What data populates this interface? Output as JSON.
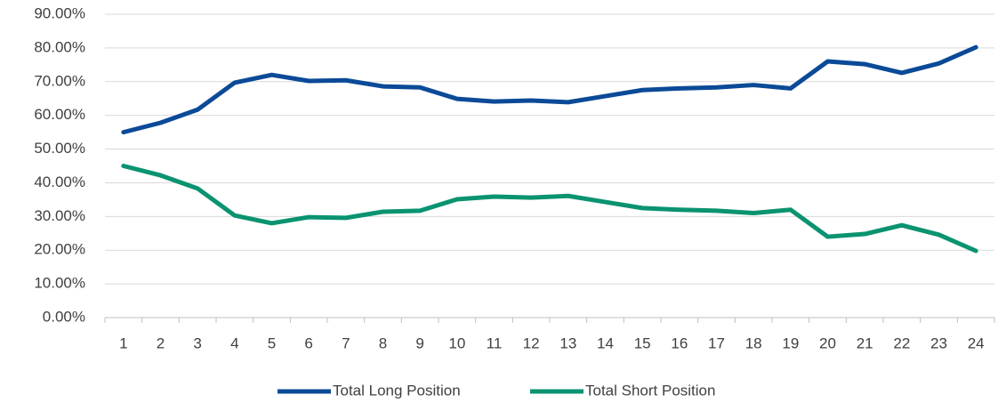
{
  "chart_data": {
    "type": "line",
    "categories": [
      "1",
      "2",
      "3",
      "4",
      "5",
      "6",
      "7",
      "8",
      "9",
      "10",
      "11",
      "12",
      "13",
      "14",
      "15",
      "16",
      "17",
      "18",
      "19",
      "20",
      "21",
      "22",
      "23",
      "24"
    ],
    "series": [
      {
        "name": "Total Long Position",
        "color": "#0b4a97",
        "values": [
          55,
          57.8,
          61.7,
          69.7,
          72,
          70.2,
          70.4,
          68.6,
          68.3,
          64.9,
          64.1,
          64.4,
          63.9,
          65.7,
          67.5,
          68,
          68.3,
          69,
          68,
          76,
          75.2,
          72.6,
          75.4,
          80.2
        ]
      },
      {
        "name": "Total Short Position",
        "color": "#0a9370",
        "values": [
          45,
          42.2,
          38.3,
          30.3,
          28,
          29.8,
          29.6,
          31.4,
          31.7,
          35.1,
          35.9,
          35.6,
          36.1,
          34.3,
          32.5,
          32,
          31.7,
          31,
          32,
          24,
          24.8,
          27.4,
          24.6,
          19.8
        ]
      }
    ],
    "ylim": [
      0,
      90
    ],
    "yticks": [
      {
        "value": 0,
        "label": "0.00%"
      },
      {
        "value": 10,
        "label": "10.00%"
      },
      {
        "value": 20,
        "label": "20.00%"
      },
      {
        "value": 30,
        "label": "30.00%"
      },
      {
        "value": 40,
        "label": "40.00%"
      },
      {
        "value": 50,
        "label": "50.00%"
      },
      {
        "value": 60,
        "label": "60.00%"
      },
      {
        "value": 70,
        "label": "70.00%"
      },
      {
        "value": 80,
        "label": "80.00%"
      },
      {
        "value": 90,
        "label": "90.00%"
      }
    ],
    "grid": true,
    "legend": "bottom"
  }
}
